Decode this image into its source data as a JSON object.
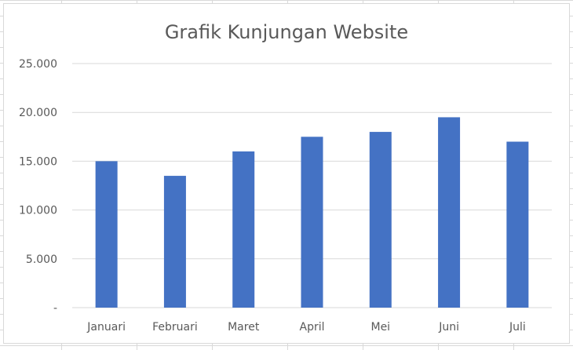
{
  "chart_data": {
    "type": "bar",
    "title": "Grafik Kunjungan Website",
    "xlabel": "",
    "ylabel": "",
    "categories": [
      "Januari",
      "Februari",
      "Maret",
      "April",
      "Mei",
      "Juni",
      "Juli"
    ],
    "values": [
      15000,
      13500,
      16000,
      17500,
      18000,
      19500,
      17000
    ],
    "ylim": [
      0,
      25000
    ],
    "y_ticks": [
      0,
      5000,
      10000,
      15000,
      20000,
      25000
    ],
    "y_tick_labels": [
      "-",
      "5.000",
      "10.000",
      "15.000",
      "20.000",
      "25.000"
    ],
    "grid": true,
    "legend": "none",
    "bar_color": "#4472c4",
    "grid_color": "#d9d9d9"
  }
}
